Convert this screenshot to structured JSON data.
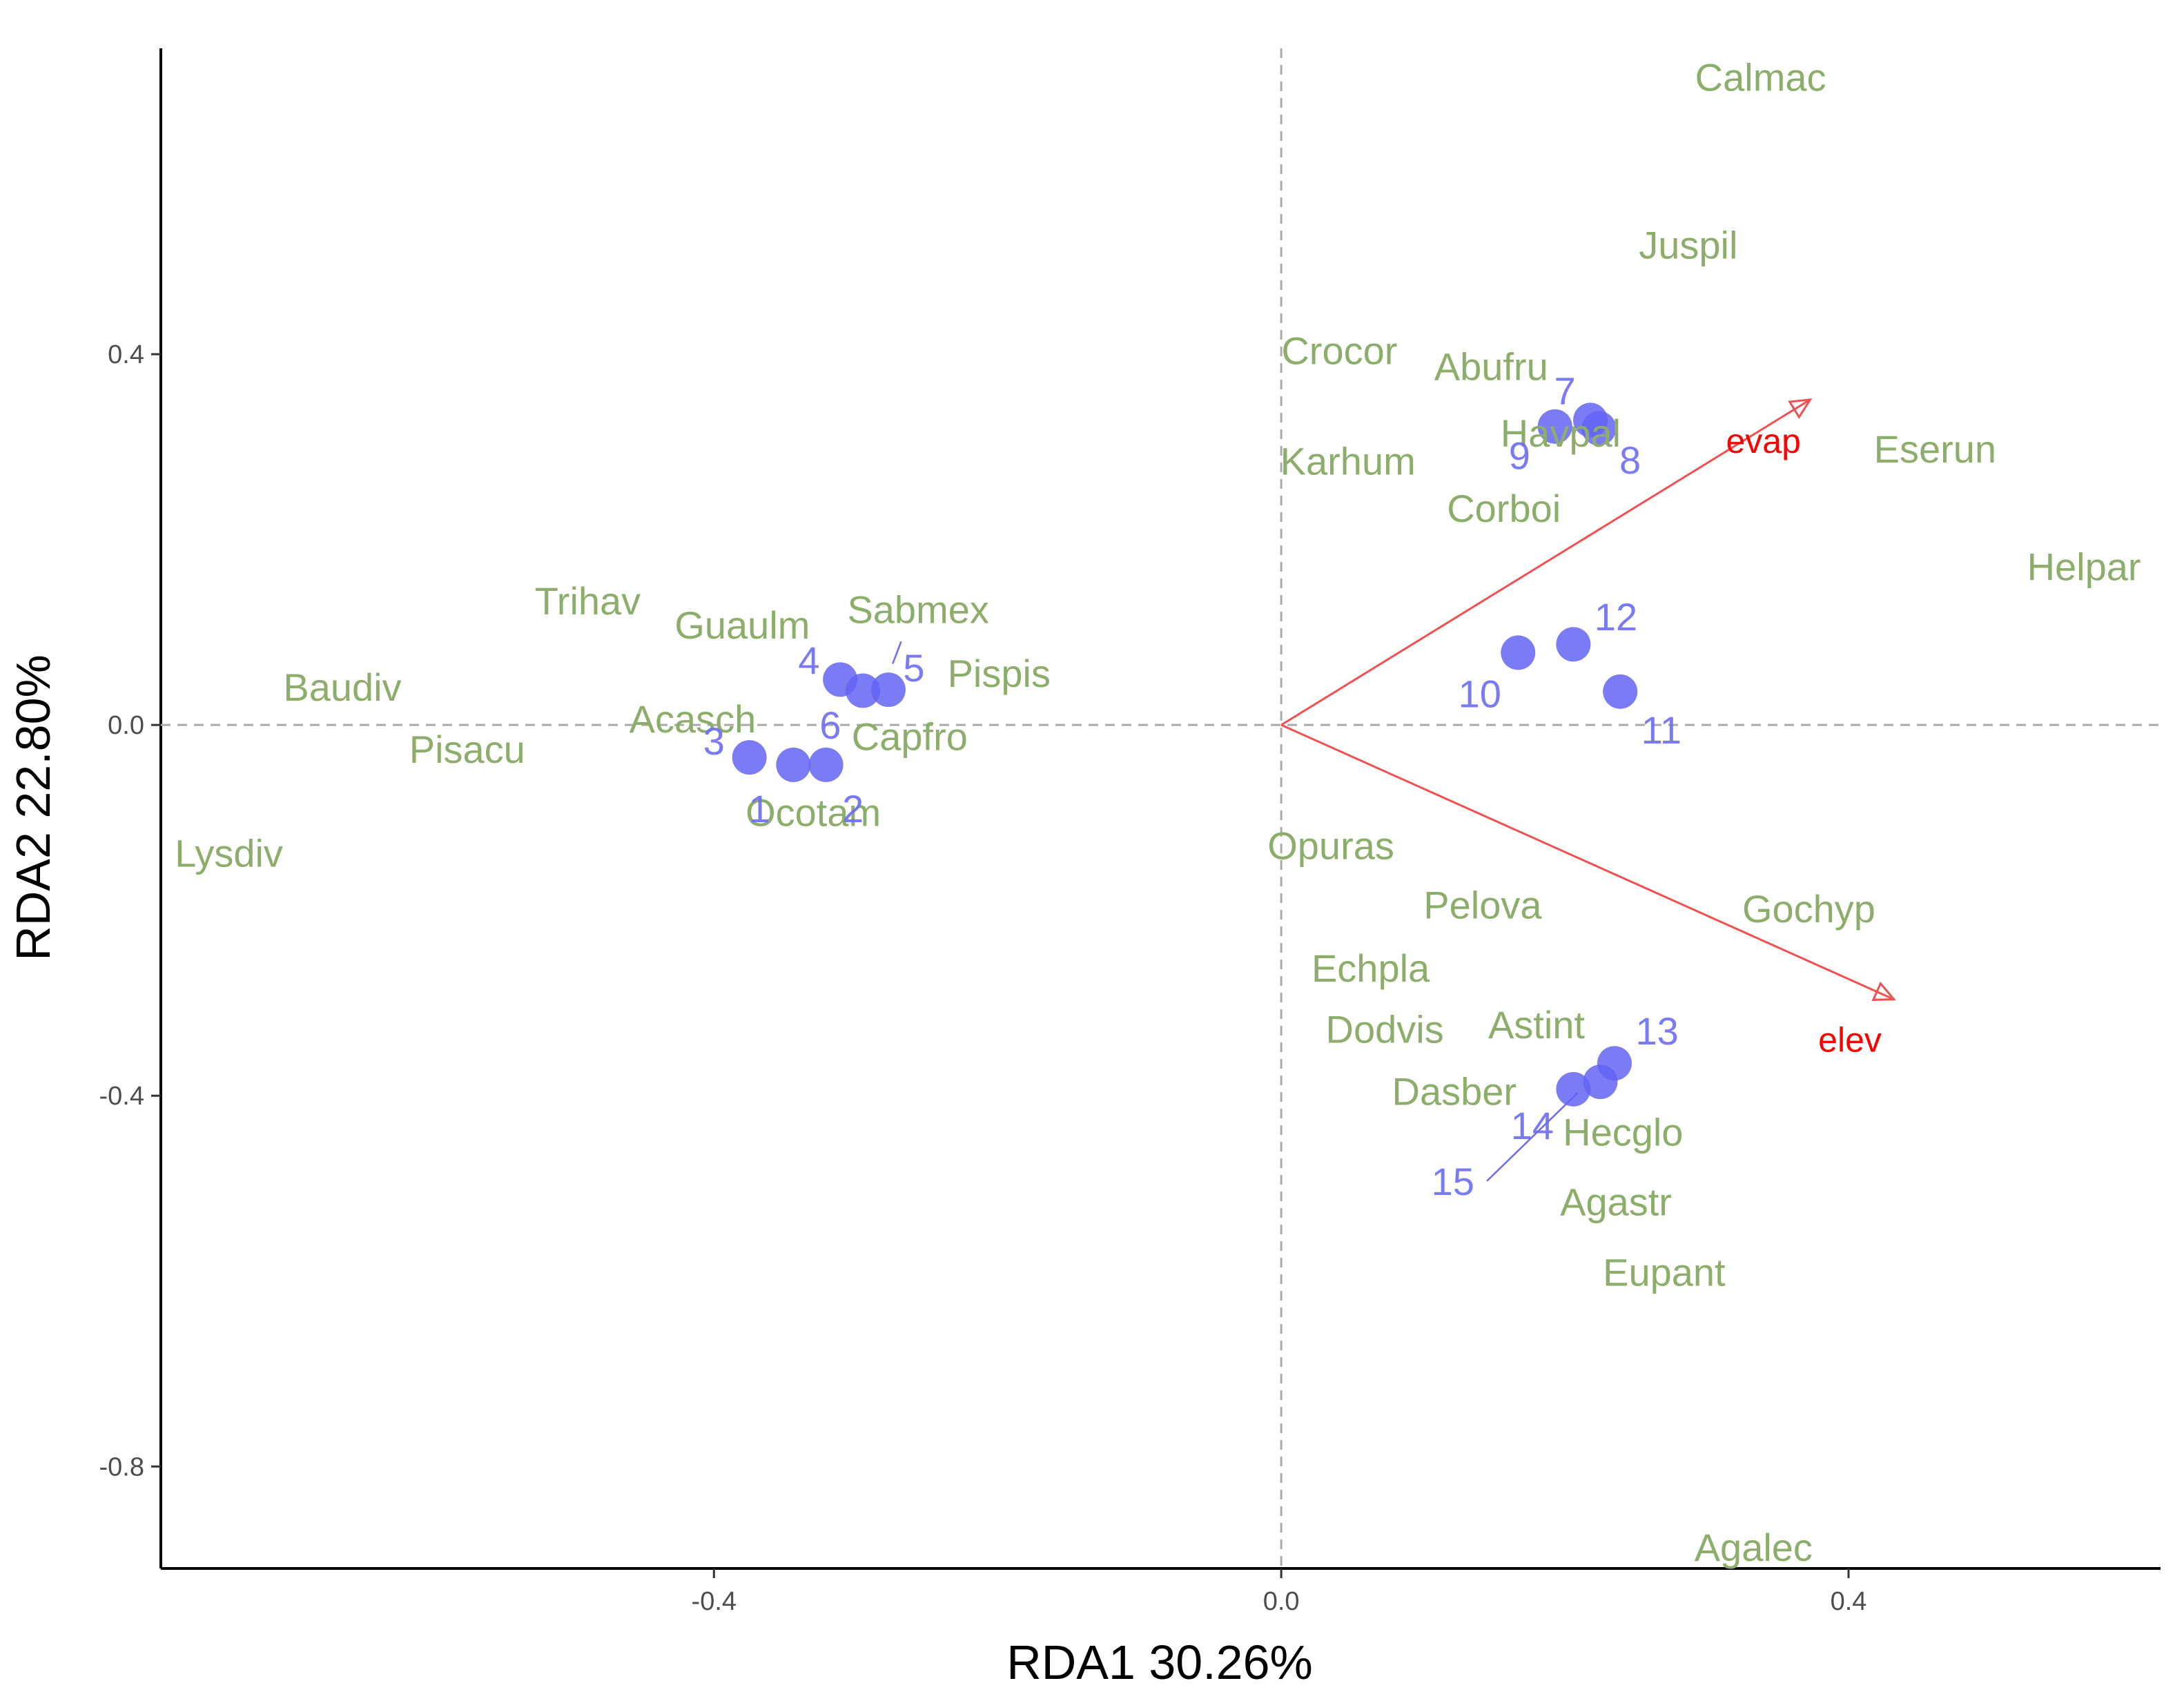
{
  "chart_data": {
    "type": "scatter",
    "subtype": "rda-triplot",
    "xlabel": "RDA1 30.26%",
    "ylabel": "RDA2 22.80%",
    "xlim": [
      -0.79,
      0.62
    ],
    "ylim": [
      -0.91,
      0.73
    ],
    "x_ticks": [
      -0.4,
      0.0,
      0.4
    ],
    "x_tick_labels": [
      "-0.4",
      "0.0",
      "0.4"
    ],
    "y_ticks": [
      -0.8,
      -0.4,
      0.0,
      0.4
    ],
    "y_tick_labels": [
      "-0.8",
      "-0.4",
      "0.0",
      "0.4"
    ],
    "grid": false,
    "reference_lines": {
      "x": 0.0,
      "y": 0.0,
      "style": "dashed"
    },
    "colors": {
      "species": "#8dad6b",
      "sites": "#6c6cf5",
      "site_points": "#6464f4",
      "vectors": "#f25050",
      "vector_labels": "#ff0000",
      "axis": "#000000",
      "reference": "#aaaaaa"
    },
    "sites": [
      {
        "label": "1",
        "x": -0.375,
        "y": -0.035,
        "lx": -0.368,
        "ly": -0.09
      },
      {
        "label": "2",
        "x": -0.321,
        "y": -0.043,
        "lx": -0.302,
        "ly": -0.09
      },
      {
        "label": "3",
        "x": -0.344,
        "y": -0.043,
        "lx": -0.4,
        "ly": -0.017
      },
      {
        "label": "4",
        "x": -0.311,
        "y": 0.049,
        "lx": -0.333,
        "ly": 0.07
      },
      {
        "label": "5",
        "x": -0.277,
        "y": 0.038,
        "lx": -0.259,
        "ly": 0.062
      },
      {
        "label": "6",
        "x": -0.295,
        "y": 0.037,
        "lx": -0.318,
        "ly": 0.0
      },
      {
        "label": "7",
        "x": 0.193,
        "y": 0.322,
        "lx": 0.2,
        "ly": 0.361
      },
      {
        "label": "8",
        "x": 0.224,
        "y": 0.32,
        "lx": 0.246,
        "ly": 0.286
      },
      {
        "label": "9",
        "x": 0.218,
        "y": 0.329,
        "lx": 0.168,
        "ly": 0.291
      },
      {
        "label": "10",
        "x": 0.167,
        "y": 0.078,
        "lx": 0.14,
        "ly": 0.034
      },
      {
        "label": "11",
        "x": 0.239,
        "y": 0.036,
        "lx": 0.268,
        "ly": -0.005
      },
      {
        "label": "12",
        "x": 0.206,
        "y": 0.087,
        "lx": 0.236,
        "ly": 0.117
      },
      {
        "label": "13",
        "x": 0.235,
        "y": -0.365,
        "lx": 0.265,
        "ly": -0.33
      },
      {
        "label": "14",
        "x": 0.225,
        "y": -0.385,
        "lx": 0.177,
        "ly": -0.432
      },
      {
        "label": "15",
        "x": 0.206,
        "y": -0.393,
        "lx": 0.121,
        "ly": -0.492
      }
    ],
    "species": [
      {
        "label": "Calmac",
        "x": 0.338,
        "y": 0.699
      },
      {
        "label": "Juspil",
        "x": 0.287,
        "y": 0.518
      },
      {
        "label": "Crocor",
        "x": 0.041,
        "y": 0.404
      },
      {
        "label": "Abufru",
        "x": 0.148,
        "y": 0.387
      },
      {
        "label": "Havpal",
        "x": 0.197,
        "y": 0.315
      },
      {
        "label": "Karhum",
        "x": 0.047,
        "y": 0.285
      },
      {
        "label": "Eserun",
        "x": 0.461,
        "y": 0.298
      },
      {
        "label": "Corboi",
        "x": 0.157,
        "y": 0.234
      },
      {
        "label": "Helpar",
        "x": 0.566,
        "y": 0.171
      },
      {
        "label": "Trihav",
        "x": -0.489,
        "y": 0.134
      },
      {
        "label": "Sabmex",
        "x": -0.256,
        "y": 0.125
      },
      {
        "label": "Guaulm",
        "x": -0.38,
        "y": 0.108
      },
      {
        "label": "Pispis",
        "x": -0.199,
        "y": 0.056
      },
      {
        "label": "Baudiv",
        "x": -0.662,
        "y": 0.041
      },
      {
        "label": "Acasch",
        "x": -0.415,
        "y": 0.007
      },
      {
        "label": "Capfro",
        "x": -0.262,
        "y": -0.012
      },
      {
        "label": "Pisacu",
        "x": -0.574,
        "y": -0.026
      },
      {
        "label": "Ocotam",
        "x": -0.33,
        "y": -0.094
      },
      {
        "label": "Lysdiv",
        "x": -0.742,
        "y": -0.138
      },
      {
        "label": "Opuras",
        "x": 0.035,
        "y": -0.13
      },
      {
        "label": "Pelova",
        "x": 0.142,
        "y": -0.194
      },
      {
        "label": "Gochyp",
        "x": 0.372,
        "y": -0.198
      },
      {
        "label": "Echpla",
        "x": 0.063,
        "y": -0.262
      },
      {
        "label": "Astint",
        "x": 0.18,
        "y": -0.323
      },
      {
        "label": "Dodvis",
        "x": 0.073,
        "y": -0.328
      },
      {
        "label": "Dasber",
        "x": 0.122,
        "y": -0.395
      },
      {
        "label": "Hecglo",
        "x": 0.241,
        "y": -0.439
      },
      {
        "label": "Agastr",
        "x": 0.236,
        "y": -0.514
      },
      {
        "label": "Eupant",
        "x": 0.27,
        "y": -0.59
      },
      {
        "label": "Agalec",
        "x": 0.333,
        "y": -0.887
      }
    ],
    "vectors": [
      {
        "label": "evap",
        "x": 0.373,
        "y": 0.351,
        "lx": 0.34,
        "ly": 0.307
      },
      {
        "label": "elev",
        "x": 0.432,
        "y": -0.296,
        "lx": 0.401,
        "ly": -0.339
      }
    ],
    "leader_lines": [
      {
        "x1": -0.274,
        "y1": 0.066,
        "x2": -0.268,
        "y2": 0.09
      },
      {
        "x1": 0.145,
        "y1": -0.492,
        "x2": 0.209,
        "y2": -0.397
      }
    ]
  }
}
